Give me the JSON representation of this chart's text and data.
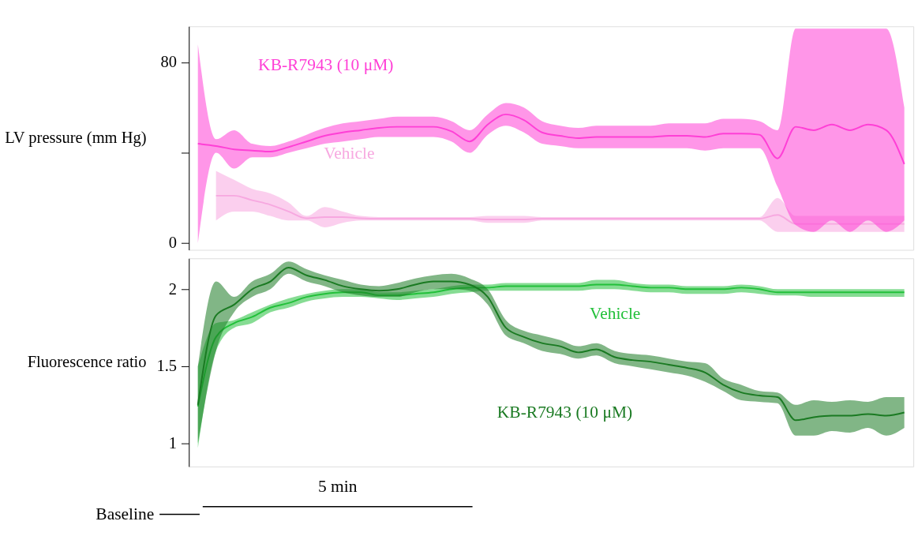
{
  "chart_data": [
    {
      "type": "line",
      "ylabel": "LV pressure (mm Hg)",
      "categories": [
        null,
        null,
        null,
        null,
        null,
        null,
        null,
        null,
        null,
        null,
        null,
        null,
        null,
        null,
        null,
        null,
        null,
        null,
        null,
        null,
        null,
        null,
        null,
        null,
        null,
        null,
        null,
        null,
        null,
        null,
        null,
        null,
        null,
        null,
        null,
        null,
        null,
        null,
        null,
        null
      ],
      "ylim": [
        -3,
        96
      ],
      "yticks": [
        0,
        {
          "value": 40,
          "label": null
        },
        80
      ],
      "grid": false,
      "series": [
        {
          "name": "Vehicle",
          "color": "#f7a8e0",
          "values": [
            null,
            21,
            21,
            19,
            17,
            14,
            11,
            11.5,
            11.5,
            11,
            10.8,
            10.8,
            10.8,
            10.8,
            10.8,
            10.8,
            10.5,
            10.5,
            10.5,
            10.8,
            10.8,
            10.8,
            10.8,
            10.8,
            10.8,
            10.8,
            10.8,
            10.8,
            10.8,
            10.8,
            10.8,
            10.8,
            12.5,
            8.5,
            8.5,
            8.5,
            8.5,
            8.5,
            8.5,
            8.5
          ],
          "lower": [
            null,
            10,
            14,
            14,
            12,
            10,
            10,
            7,
            9,
            10,
            10,
            10,
            10,
            10,
            10,
            10,
            9,
            9,
            9,
            10,
            10,
            10,
            10,
            10,
            10,
            10,
            10,
            10,
            10,
            10,
            10,
            10,
            5,
            5,
            5,
            5,
            5,
            5,
            5,
            5
          ],
          "upper": [
            null,
            32,
            28,
            24,
            22,
            18,
            12,
            16,
            14,
            12,
            11.5,
            11.5,
            11.5,
            11.5,
            11.5,
            11.5,
            12,
            12,
            12,
            11.5,
            11.5,
            11.5,
            11.5,
            11.5,
            11.5,
            11.5,
            11.5,
            11.5,
            11.5,
            11.5,
            11.5,
            11.5,
            20,
            12,
            12,
            12,
            12,
            12,
            12,
            12
          ]
        },
        {
          "name": "KB-R7943 (10 μM)",
          "color": "#ff3fd6",
          "values": [
            44,
            43,
            41.5,
            41,
            40.5,
            42.5,
            45,
            47.5,
            49,
            50,
            51,
            51.5,
            51.5,
            51.5,
            49.5,
            45,
            52.5,
            57,
            54.5,
            49,
            47.5,
            46.5,
            47,
            47,
            47,
            47,
            47.5,
            47.5,
            47,
            48.5,
            48.5,
            48,
            37.5,
            51.5,
            50,
            52.5,
            50,
            52.5,
            50,
            35
          ],
          "lower": [
            0,
            40,
            33,
            38,
            38,
            40,
            42,
            44,
            45,
            46,
            47,
            47,
            47,
            47,
            45,
            40,
            48,
            52,
            49,
            44,
            43,
            42,
            42,
            42,
            42,
            42,
            42,
            42,
            41,
            42,
            42,
            42,
            25,
            8,
            5,
            10,
            5,
            10,
            5,
            10
          ],
          "upper": [
            88,
            46,
            50,
            44,
            43,
            45,
            48,
            51,
            53,
            54,
            55,
            56,
            56,
            56,
            54,
            50,
            57,
            62,
            60,
            54,
            52,
            51,
            52,
            52,
            52,
            52,
            53,
            53,
            53,
            55,
            55,
            54,
            50,
            95,
            95,
            95,
            95,
            95,
            95,
            60
          ]
        }
      ]
    },
    {
      "type": "line",
      "ylabel": "Fluorescence ratio",
      "categories": [
        null,
        null,
        null,
        null,
        null,
        null,
        null,
        null,
        null,
        null,
        null,
        null,
        null,
        null,
        null,
        null,
        null,
        null,
        null,
        null,
        null,
        null,
        null,
        null,
        null,
        null,
        null,
        null,
        null,
        null,
        null,
        null,
        null,
        null,
        null,
        null,
        null,
        null,
        null,
        null
      ],
      "ylim": [
        0.85,
        2.2
      ],
      "yticks": [
        1,
        1.5,
        2
      ],
      "grid": false,
      "annotations": [
        "5 min",
        "Baseline"
      ],
      "series": [
        {
          "name": "Vehicle",
          "color": "#22c03a",
          "values": [
            1.24,
            1.69,
            1.78,
            1.82,
            1.88,
            1.91,
            1.95,
            1.97,
            1.98,
            1.98,
            1.96,
            1.96,
            1.97,
            1.98,
            2.0,
            2.01,
            2.01,
            2.02,
            2.02,
            2.02,
            2.02,
            2.02,
            2.03,
            2.03,
            2.02,
            2.01,
            2.01,
            2.0,
            2.0,
            2.0,
            2.01,
            2.0,
            1.98,
            1.98,
            1.98,
            1.98,
            1.98,
            1.98,
            1.98,
            1.98
          ],
          "lower": [
            0.97,
            1.6,
            1.75,
            1.78,
            1.85,
            1.88,
            1.92,
            1.94,
            1.95,
            1.95,
            1.94,
            1.93,
            1.94,
            1.95,
            1.97,
            1.98,
            1.99,
            1.99,
            1.99,
            1.99,
            1.99,
            1.99,
            2.0,
            2.0,
            1.99,
            1.98,
            1.98,
            1.97,
            1.97,
            1.97,
            1.98,
            1.97,
            1.96,
            1.96,
            1.95,
            1.95,
            1.95,
            1.95,
            1.95,
            1.95
          ],
          "upper": [
            1.5,
            1.78,
            1.8,
            1.85,
            1.9,
            1.94,
            1.97,
            1.99,
            2.0,
            2.0,
            1.98,
            1.98,
            1.99,
            2.0,
            2.02,
            2.03,
            2.03,
            2.04,
            2.04,
            2.04,
            2.04,
            2.04,
            2.06,
            2.06,
            2.04,
            2.03,
            2.03,
            2.02,
            2.02,
            2.02,
            2.03,
            2.02,
            2.0,
            2.0,
            2.0,
            2.0,
            2.0,
            2.0,
            2.0,
            2.0
          ]
        },
        {
          "name": "KB-R7943 (10 μM)",
          "color": "#1a7a22",
          "values": [
            1.25,
            1.83,
            1.9,
            2.0,
            2.05,
            2.14,
            2.09,
            2.06,
            2.02,
            2.0,
            1.99,
            2.0,
            2.03,
            2.05,
            2.05,
            2.03,
            1.95,
            1.75,
            1.69,
            1.65,
            1.63,
            1.59,
            1.61,
            1.56,
            1.54,
            1.53,
            1.51,
            1.49,
            1.46,
            1.38,
            1.33,
            1.31,
            1.3,
            1.15,
            1.17,
            1.18,
            1.18,
            1.19,
            1.18,
            1.2
          ],
          "lower": [
            1.0,
            1.6,
            1.85,
            1.95,
            2.0,
            2.1,
            2.05,
            2.02,
            1.98,
            1.96,
            1.95,
            1.95,
            1.98,
            2.0,
            2.0,
            1.99,
            1.9,
            1.7,
            1.65,
            1.6,
            1.58,
            1.55,
            1.57,
            1.52,
            1.5,
            1.48,
            1.46,
            1.44,
            1.4,
            1.34,
            1.28,
            1.27,
            1.26,
            1.05,
            1.05,
            1.08,
            1.07,
            1.1,
            1.05,
            1.1
          ],
          "upper": [
            1.5,
            2.05,
            1.95,
            2.05,
            2.1,
            2.18,
            2.13,
            2.09,
            2.06,
            2.03,
            2.02,
            2.04,
            2.07,
            2.09,
            2.1,
            2.07,
            2.0,
            1.8,
            1.73,
            1.7,
            1.67,
            1.63,
            1.65,
            1.6,
            1.58,
            1.57,
            1.55,
            1.53,
            1.52,
            1.42,
            1.38,
            1.34,
            1.33,
            1.25,
            1.28,
            1.27,
            1.28,
            1.27,
            1.3,
            1.3
          ]
        }
      ]
    }
  ]
}
